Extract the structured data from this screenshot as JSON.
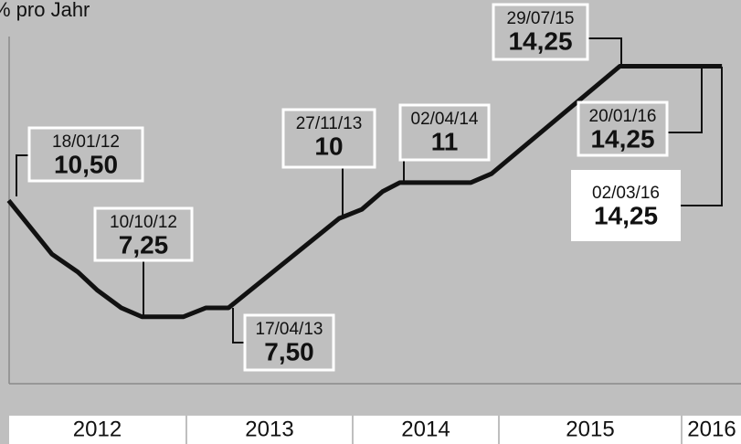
{
  "chart_data": {
    "type": "line",
    "y_label": "% pro Jahr",
    "series": [
      {
        "color": "#111111",
        "x": [
          2012.05,
          2012.3,
          2012.45,
          2012.56,
          2012.7,
          2012.82,
          2013.06,
          2013.19,
          2013.32,
          2013.96,
          2014.09,
          2014.21,
          2014.31,
          2014.72,
          2014.84,
          2015.58,
          2016.17
        ],
        "values": [
          10.5,
          9,
          8.5,
          8,
          7.5,
          7.25,
          7.25,
          7.5,
          7.5,
          10,
          10.25,
          10.75,
          11,
          11,
          11.25,
          14.25,
          14.25
        ]
      }
    ],
    "xlim": [
      2012,
      2016.28
    ],
    "ylim": [
      5.38,
      16.1
    ],
    "years": [
      "2012",
      "2013",
      "2014",
      "2015",
      "2016"
    ],
    "annotations": [
      {
        "date": "18/01/12",
        "label": "10,50"
      },
      {
        "date": "10/10/12",
        "label": "7,25"
      },
      {
        "date": "17/04/13",
        "label": "7,50"
      },
      {
        "date": "27/11/13",
        "label": "10"
      },
      {
        "date": "02/04/14",
        "label": "11"
      },
      {
        "date": "29/07/15",
        "label": "14,25"
      },
      {
        "date": "20/01/16",
        "label": "14,25"
      },
      {
        "date": "02/03/16",
        "label": "14,25"
      }
    ]
  }
}
